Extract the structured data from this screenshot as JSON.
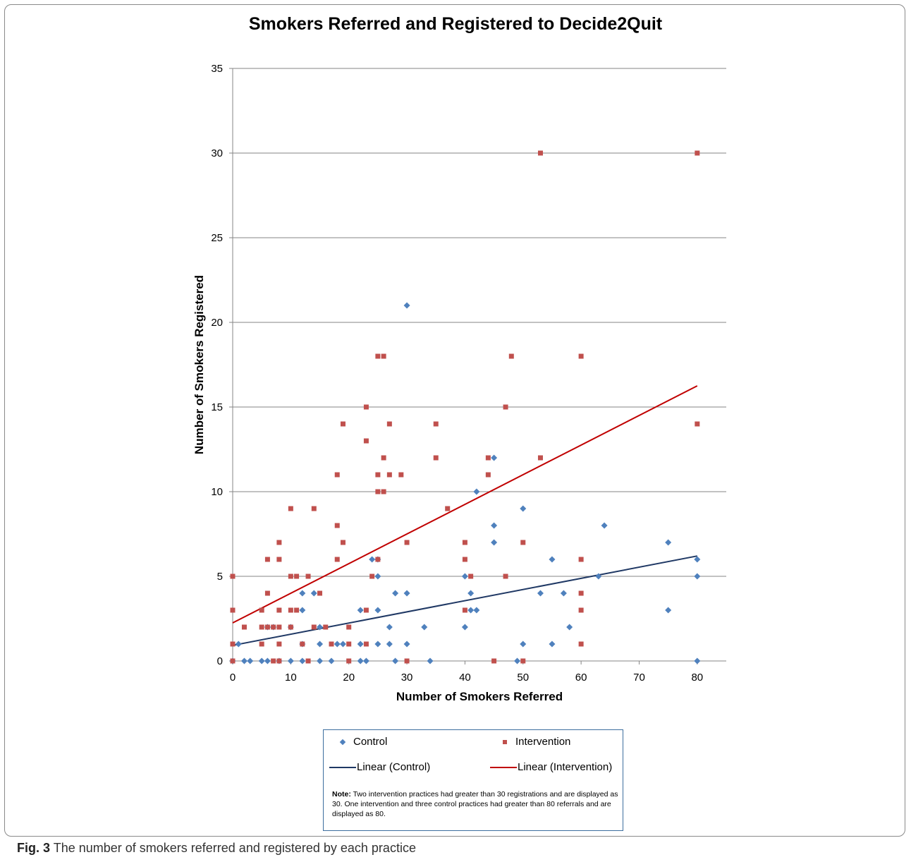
{
  "chart_data": {
    "type": "scatter",
    "title": "Smokers Referred and Registered to Decide2Quit",
    "xlabel": "Number of Smokers Referred",
    "ylabel": "Number of Smokers Registered",
    "xlim": [
      0,
      85
    ],
    "ylim": [
      0,
      35
    ],
    "xticks": [
      0,
      10,
      20,
      30,
      40,
      50,
      60,
      70,
      80
    ],
    "yticks": [
      0,
      5,
      10,
      15,
      20,
      25,
      30,
      35
    ],
    "grid": "horizontal",
    "legend_position": "bottom",
    "series": [
      {
        "name": "Control",
        "marker": "diamond",
        "color": "#4f81bd",
        "points": [
          [
            0,
            0
          ],
          [
            1,
            1
          ],
          [
            2,
            0
          ],
          [
            3,
            0
          ],
          [
            5,
            0
          ],
          [
            6,
            0
          ],
          [
            6,
            2
          ],
          [
            7,
            2
          ],
          [
            8,
            0
          ],
          [
            10,
            0
          ],
          [
            10,
            2
          ],
          [
            12,
            0
          ],
          [
            12,
            1
          ],
          [
            12,
            3
          ],
          [
            12,
            4
          ],
          [
            14,
            4
          ],
          [
            15,
            0
          ],
          [
            15,
            1
          ],
          [
            15,
            2
          ],
          [
            17,
            0
          ],
          [
            18,
            1
          ],
          [
            19,
            1
          ],
          [
            22,
            0
          ],
          [
            22,
            1
          ],
          [
            22,
            3
          ],
          [
            23,
            0
          ],
          [
            24,
            6
          ],
          [
            25,
            1
          ],
          [
            25,
            3
          ],
          [
            25,
            5
          ],
          [
            25,
            6
          ],
          [
            27,
            1
          ],
          [
            27,
            2
          ],
          [
            28,
            0
          ],
          [
            28,
            4
          ],
          [
            30,
            1
          ],
          [
            30,
            4
          ],
          [
            30,
            21
          ],
          [
            33,
            2
          ],
          [
            34,
            0
          ],
          [
            40,
            2
          ],
          [
            40,
            5
          ],
          [
            41,
            3
          ],
          [
            41,
            4
          ],
          [
            42,
            3
          ],
          [
            42,
            10
          ],
          [
            45,
            7
          ],
          [
            45,
            8
          ],
          [
            45,
            12
          ],
          [
            49,
            0
          ],
          [
            50,
            1
          ],
          [
            50,
            9
          ],
          [
            53,
            4
          ],
          [
            55,
            1
          ],
          [
            55,
            6
          ],
          [
            57,
            4
          ],
          [
            58,
            2
          ],
          [
            63,
            5
          ],
          [
            64,
            8
          ],
          [
            75,
            3
          ],
          [
            75,
            7
          ],
          [
            80,
            0
          ],
          [
            80,
            5
          ],
          [
            80,
            6
          ]
        ]
      },
      {
        "name": "Intervention",
        "marker": "square",
        "color": "#c0504d",
        "points": [
          [
            0,
            0
          ],
          [
            0,
            1
          ],
          [
            0,
            3
          ],
          [
            0,
            5
          ],
          [
            2,
            2
          ],
          [
            5,
            1
          ],
          [
            5,
            2
          ],
          [
            5,
            3
          ],
          [
            6,
            2
          ],
          [
            6,
            4
          ],
          [
            6,
            6
          ],
          [
            7,
            0
          ],
          [
            7,
            2
          ],
          [
            8,
            0
          ],
          [
            8,
            1
          ],
          [
            8,
            2
          ],
          [
            8,
            3
          ],
          [
            8,
            6
          ],
          [
            8,
            7
          ],
          [
            10,
            2
          ],
          [
            10,
            3
          ],
          [
            10,
            5
          ],
          [
            10,
            9
          ],
          [
            11,
            3
          ],
          [
            11,
            5
          ],
          [
            12,
            1
          ],
          [
            13,
            0
          ],
          [
            13,
            5
          ],
          [
            14,
            2
          ],
          [
            14,
            9
          ],
          [
            15,
            4
          ],
          [
            16,
            2
          ],
          [
            17,
            1
          ],
          [
            18,
            6
          ],
          [
            18,
            8
          ],
          [
            18,
            11
          ],
          [
            19,
            7
          ],
          [
            19,
            14
          ],
          [
            20,
            0
          ],
          [
            20,
            1
          ],
          [
            20,
            2
          ],
          [
            23,
            1
          ],
          [
            23,
            3
          ],
          [
            23,
            13
          ],
          [
            23,
            15
          ],
          [
            24,
            5
          ],
          [
            25,
            6
          ],
          [
            25,
            10
          ],
          [
            25,
            11
          ],
          [
            25,
            18
          ],
          [
            26,
            10
          ],
          [
            26,
            12
          ],
          [
            26,
            18
          ],
          [
            27,
            11
          ],
          [
            27,
            14
          ],
          [
            29,
            11
          ],
          [
            30,
            0
          ],
          [
            30,
            7
          ],
          [
            35,
            12
          ],
          [
            35,
            14
          ],
          [
            37,
            9
          ],
          [
            40,
            3
          ],
          [
            40,
            6
          ],
          [
            40,
            7
          ],
          [
            41,
            5
          ],
          [
            44,
            11
          ],
          [
            44,
            12
          ],
          [
            45,
            0
          ],
          [
            47,
            5
          ],
          [
            47,
            15
          ],
          [
            48,
            18
          ],
          [
            50,
            0
          ],
          [
            50,
            7
          ],
          [
            53,
            12
          ],
          [
            53,
            30
          ],
          [
            60,
            1
          ],
          [
            60,
            3
          ],
          [
            60,
            4
          ],
          [
            60,
            6
          ],
          [
            60,
            18
          ],
          [
            80,
            14
          ],
          [
            80,
            30
          ]
        ]
      },
      {
        "name": "Linear (Control)",
        "type": "line",
        "color": "#1f3864",
        "x": [
          0,
          80
        ],
        "y": [
          0.92,
          6.2
        ]
      },
      {
        "name": "Linear (Intervention)",
        "type": "line",
        "color": "#c00000",
        "x": [
          0,
          80
        ],
        "y": [
          2.25,
          16.25
        ]
      }
    ]
  },
  "legend": {
    "control_label": "Control",
    "intervention_label": "Intervention",
    "linear_control_label": "Linear (Control)",
    "linear_intervention_label": "Linear (Intervention)",
    "note_label": "Note:",
    "note_text": "Two intervention practices had greater than 30 registrations and are displayed as 30.  One intervention and three control practices had greater than 80 referrals and are displayed as 80."
  },
  "caption": {
    "label": "Fig. 3",
    "text": "The number of smokers referred and registered by each practice"
  }
}
